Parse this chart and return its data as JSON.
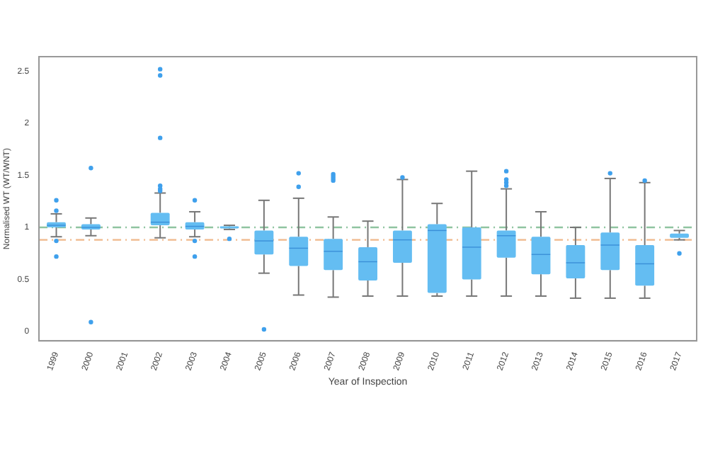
{
  "chart_data": {
    "type": "box",
    "xlabel": "Year of Inspection",
    "ylabel": "Normalised WT (WT/WNT)",
    "categories": [
      "1999",
      "2000",
      "2001",
      "2002",
      "2003",
      "2004",
      "2005",
      "2006",
      "2007",
      "2008",
      "2009",
      "2010",
      "2011",
      "2012",
      "2013",
      "2014",
      "2015",
      "2016",
      "2017"
    ],
    "color": "#64bdf2",
    "boxes": [
      {
        "low": 0.91,
        "q1": 1.0,
        "median": 1.02,
        "q3": 1.05,
        "high": 1.13,
        "outliers": [
          1.26,
          1.16,
          0.87,
          0.72
        ]
      },
      {
        "low": 0.92,
        "q1": 0.98,
        "median": 1.0,
        "q3": 1.03,
        "high": 1.09,
        "outliers": [
          1.57,
          0.09
        ]
      },
      null,
      {
        "low": 0.9,
        "q1": 1.02,
        "median": 1.05,
        "q3": 1.14,
        "high": 1.33,
        "outliers": [
          2.52,
          2.46,
          1.86,
          1.4,
          1.37,
          1.35
        ]
      },
      {
        "low": 0.91,
        "q1": 0.98,
        "median": 1.01,
        "q3": 1.05,
        "high": 1.15,
        "outliers": [
          1.26,
          0.87,
          0.72
        ]
      },
      {
        "low": 0.98,
        "q1": 0.99,
        "median": 1.0,
        "q3": 1.01,
        "high": 1.02,
        "outliers": [
          0.89
        ]
      },
      {
        "low": 0.56,
        "q1": 0.74,
        "median": 0.87,
        "q3": 0.97,
        "high": 1.26,
        "outliers": [
          0.02
        ]
      },
      {
        "low": 0.35,
        "q1": 0.63,
        "median": 0.8,
        "q3": 0.91,
        "high": 1.28,
        "outliers": [
          1.52,
          1.39
        ]
      },
      {
        "low": 0.33,
        "q1": 0.59,
        "median": 0.77,
        "q3": 0.89,
        "high": 1.1,
        "outliers": [
          1.51,
          1.49,
          1.47,
          1.45
        ]
      },
      {
        "low": 0.34,
        "q1": 0.49,
        "median": 0.67,
        "q3": 0.81,
        "high": 1.06
      },
      {
        "low": 0.34,
        "q1": 0.66,
        "median": 0.88,
        "q3": 0.97,
        "high": 1.46,
        "outliers": [
          1.48
        ]
      },
      {
        "low": 0.34,
        "q1": 0.37,
        "median": 0.97,
        "q3": 1.03,
        "high": 1.23
      },
      {
        "low": 0.34,
        "q1": 0.5,
        "median": 0.81,
        "q3": 1.0,
        "high": 1.54
      },
      {
        "low": 0.34,
        "q1": 0.71,
        "median": 0.92,
        "q3": 0.97,
        "high": 1.37,
        "outliers": [
          1.54,
          1.46,
          1.43,
          1.4
        ]
      },
      {
        "low": 0.34,
        "q1": 0.55,
        "median": 0.74,
        "q3": 0.91,
        "high": 1.15
      },
      {
        "low": 0.32,
        "q1": 0.51,
        "median": 0.66,
        "q3": 0.83,
        "high": 1.0
      },
      {
        "low": 0.32,
        "q1": 0.59,
        "median": 0.83,
        "q3": 0.95,
        "high": 1.47,
        "outliers": [
          1.52
        ]
      },
      {
        "low": 0.32,
        "q1": 0.44,
        "median": 0.65,
        "q3": 0.83,
        "high": 1.43,
        "outliers": [
          1.45
        ]
      },
      {
        "low": 0.88,
        "q1": 0.9,
        "median": 0.92,
        "q3": 0.94,
        "high": 0.97,
        "outliers": [
          0.75
        ]
      }
    ],
    "ylim": [
      -0.09,
      2.64
    ],
    "yticks": [
      0,
      0.5,
      1,
      1.5,
      2,
      2.5
    ],
    "grid": false,
    "legend": false,
    "ref_lines": [
      {
        "axis": "y",
        "value": 1.0,
        "color": "#8fc4a0",
        "line_style": "dashed"
      },
      {
        "axis": "y",
        "value": 0.88,
        "color": "#f0b88a",
        "line_style": "dashed"
      }
    ]
  }
}
